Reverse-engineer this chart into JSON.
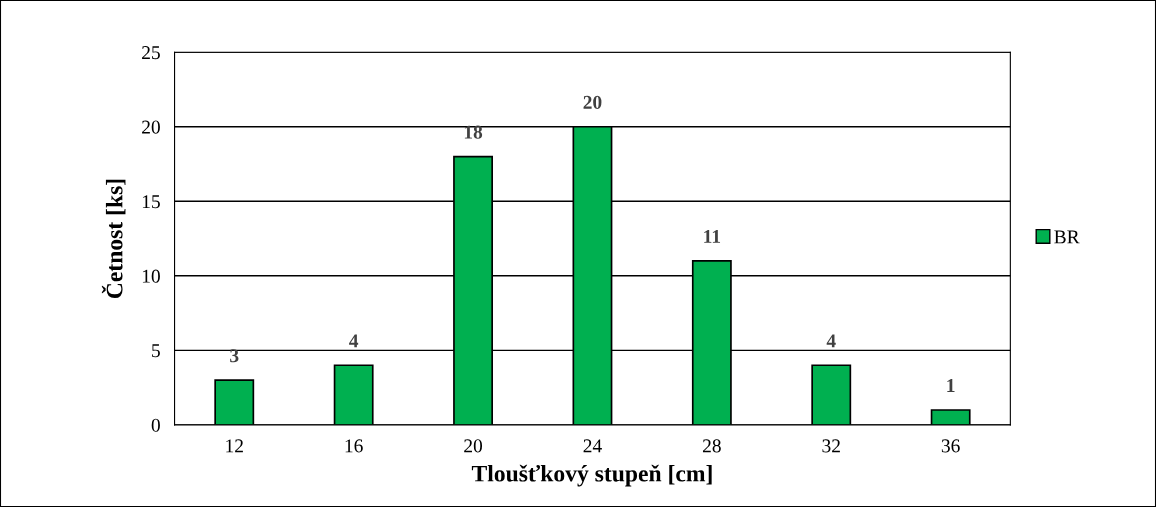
{
  "chart_data": {
    "type": "bar",
    "xlabel": "Tloušťkový stupeň [cm]",
    "ylabel": "Četnost [ks]",
    "categories": [
      "12",
      "16",
      "20",
      "24",
      "28",
      "32",
      "36"
    ],
    "series": [
      {
        "name": "BR",
        "color": "#00b050",
        "values": [
          3,
          4,
          18,
          20,
          11,
          4,
          1
        ]
      }
    ],
    "ylim": [
      0,
      25
    ],
    "yticks": [
      0,
      5,
      10,
      15,
      20,
      25
    ],
    "grid": "y",
    "legend": "right",
    "data_labels": true
  }
}
